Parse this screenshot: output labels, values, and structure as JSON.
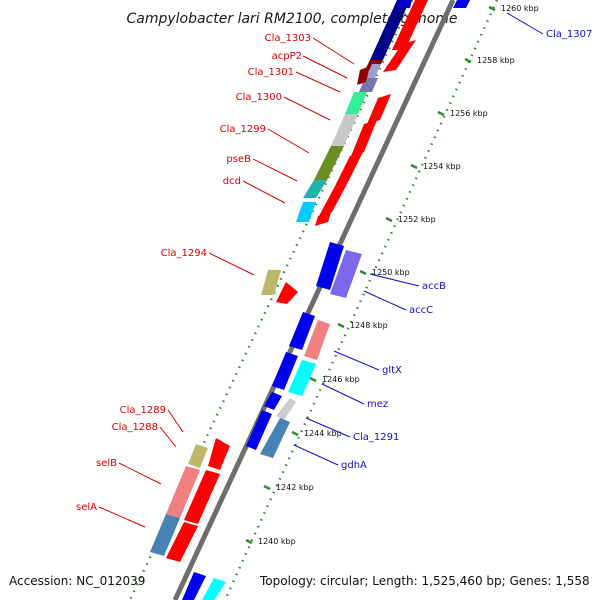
{
  "header": {
    "title": "Campylobacter lari RM2100, complete genome"
  },
  "footer": {
    "accession": "Accession: NC_012039",
    "topology": "Topology: circular; Length: 1,525,460 bp; Genes: 1,558"
  },
  "colors": {
    "backbone": "#777777",
    "tick_dots": "#2e8b2e",
    "left_label": "#dd0000",
    "right_label": "#1010cc",
    "cog_red": "#ff0000",
    "cog_blue": "#0000ee"
  },
  "scale": {
    "ticks_kbp": [
      1240,
      1242,
      1244,
      1246,
      1248,
      1250,
      1252,
      1254,
      1256,
      1258,
      1260
    ],
    "tick_labels": [
      "1240 kbp",
      "1242 kbp",
      "1244 kbp",
      "1246 kbp",
      "1248 kbp",
      "1250 kbp",
      "1252 kbp",
      "1254 kbp",
      "1256 kbp",
      "1258 kbp",
      "1260 kbp"
    ]
  },
  "gene_labels_left": [
    {
      "name": "Cla_1303"
    },
    {
      "name": "acpP2"
    },
    {
      "name": "Cla_1301"
    },
    {
      "name": "Cla_1300"
    },
    {
      "name": "Cla_1299"
    },
    {
      "name": "pseB"
    },
    {
      "name": "dcd"
    },
    {
      "name": "Cla_1294"
    },
    {
      "name": "Cla_1289"
    },
    {
      "name": "Cla_1288"
    },
    {
      "name": "selB"
    },
    {
      "name": "selA"
    }
  ],
  "gene_labels_right": [
    {
      "name": "Cla_1307"
    },
    {
      "name": "accB"
    },
    {
      "name": "accC"
    },
    {
      "name": "gltX"
    },
    {
      "name": "mez"
    },
    {
      "name": "Cla_1291"
    },
    {
      "name": "gdhA"
    }
  ]
}
